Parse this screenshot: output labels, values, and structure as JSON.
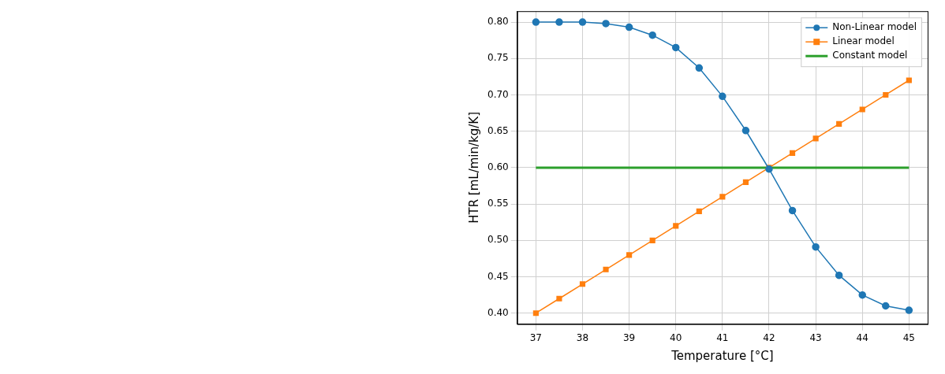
{
  "chart_data": {
    "type": "line",
    "x_label": "Temperature [°C]",
    "y_label": "HTR [mL/min/kg/K]",
    "x": [
      37,
      37.5,
      38,
      38.5,
      39,
      39.5,
      40,
      40.5,
      41,
      41.5,
      42,
      42.5,
      43,
      43.5,
      44,
      44.5,
      45
    ],
    "series": [
      {
        "name": "Non-Linear model",
        "color": "#1f77b4",
        "marker": "circle",
        "line_style": "solid",
        "values": [
          0.8,
          0.8,
          0.8,
          0.798,
          0.793,
          0.782,
          0.765,
          0.737,
          0.698,
          0.651,
          0.598,
          0.541,
          0.491,
          0.452,
          0.425,
          0.41,
          0.404
        ]
      },
      {
        "name": "Linear model",
        "color": "#ff7f0e",
        "marker": "square",
        "line_style": "solid",
        "values": [
          0.4,
          0.42,
          0.44,
          0.46,
          0.48,
          0.5,
          0.52,
          0.54,
          0.56,
          0.58,
          0.6,
          0.62,
          0.64,
          0.66,
          0.68,
          0.7,
          0.72
        ]
      },
      {
        "name": "Constant model",
        "color": "#2ca02c",
        "marker": "none",
        "line_style": "solid",
        "values": [
          0.6,
          0.6,
          0.6,
          0.6,
          0.6,
          0.6,
          0.6,
          0.6,
          0.6,
          0.6,
          0.6,
          0.6,
          0.6,
          0.6,
          0.6,
          0.6,
          0.6
        ]
      }
    ],
    "xlim": [
      36.6,
      45.4
    ],
    "xticks": [
      37,
      38,
      39,
      40,
      41,
      42,
      43,
      44,
      45
    ],
    "ylim": [
      0.385,
      0.815
    ],
    "yticks": [
      {
        "value": 0.4,
        "label": "0.40"
      },
      {
        "value": 0.45,
        "label": "0.45"
      },
      {
        "value": 0.5,
        "label": "0.50"
      },
      {
        "value": 0.55,
        "label": "0.55"
      },
      {
        "value": 0.6,
        "label": "0.60"
      },
      {
        "value": 0.65,
        "label": "0.65"
      },
      {
        "value": 0.7,
        "label": "0.70"
      },
      {
        "value": 0.75,
        "label": "0.75"
      },
      {
        "value": 0.8,
        "label": "0.80"
      }
    ],
    "grid": true,
    "legend": "upper right"
  }
}
